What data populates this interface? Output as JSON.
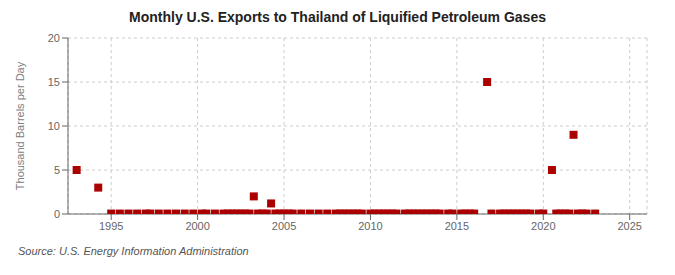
{
  "chart_data": {
    "type": "scatter",
    "title": "Monthly U.S. Exports to Thailand of Liquified Petroleum Gases",
    "y_label": "Thousand Barrels per Day",
    "source": "Source: U.S. Energy Information Administration",
    "color": "#aa0000",
    "marker": "square",
    "grid": true,
    "xlim": [
      1992.5,
      2026
    ],
    "ylim": [
      0,
      20
    ],
    "xticks": [
      1995,
      2000,
      2005,
      2010,
      2015,
      2020,
      2025
    ],
    "yticks": [
      0,
      5,
      10,
      15,
      20
    ],
    "x": [
      1993.0,
      1994.25,
      1995.0,
      1995.5,
      1996.0,
      1996.5,
      1997.0,
      1997.25,
      1997.75,
      1998.25,
      1998.75,
      1999.25,
      1999.75,
      2000.25,
      2000.5,
      2001.0,
      2001.5,
      2001.75,
      2002.0,
      2002.25,
      2002.5,
      2002.75,
      2003.0,
      2003.25,
      2003.5,
      2003.75,
      2004.0,
      2004.25,
      2004.5,
      2004.75,
      2005.0,
      2005.25,
      2005.5,
      2006.0,
      2006.5,
      2007.0,
      2007.5,
      2008.0,
      2008.25,
      2008.5,
      2008.75,
      2009.0,
      2009.25,
      2009.5,
      2010.0,
      2010.25,
      2010.5,
      2010.75,
      2011.0,
      2011.25,
      2011.5,
      2012.0,
      2012.25,
      2012.5,
      2012.75,
      2013.0,
      2013.25,
      2013.5,
      2013.75,
      2014.0,
      2014.5,
      2014.75,
      2015.25,
      2015.5,
      2015.75,
      2016.0,
      2016.75,
      2017.0,
      2017.5,
      2017.75,
      2018.0,
      2018.25,
      2018.5,
      2018.75,
      2019.0,
      2019.25,
      2019.75,
      2020.0,
      2020.5,
      2020.75,
      2021.0,
      2021.25,
      2021.5,
      2021.75,
      2022.0,
      2022.25,
      2022.5,
      2023.0
    ],
    "values": [
      5.0,
      3.0,
      0.05,
      0.05,
      0.05,
      0.05,
      0.05,
      0.05,
      0.05,
      0.05,
      0.05,
      0.05,
      0.05,
      0.05,
      0.05,
      0.05,
      0.05,
      0.05,
      0.05,
      0.05,
      0.05,
      0.05,
      0.05,
      2.0,
      0.05,
      0.05,
      0.05,
      1.2,
      0.05,
      0.05,
      0.05,
      0.05,
      0.05,
      0.05,
      0.05,
      0.05,
      0.05,
      0.05,
      0.05,
      0.05,
      0.05,
      0.05,
      0.05,
      0.05,
      0.05,
      0.05,
      0.05,
      0.05,
      0.05,
      0.05,
      0.05,
      0.05,
      0.05,
      0.05,
      0.05,
      0.05,
      0.05,
      0.05,
      0.05,
      0.05,
      0.05,
      0.05,
      0.05,
      0.05,
      0.05,
      0.05,
      15.0,
      0.05,
      0.05,
      0.05,
      0.05,
      0.05,
      0.05,
      0.05,
      0.05,
      0.05,
      0.05,
      0.05,
      5.0,
      0.05,
      0.05,
      0.05,
      0.05,
      9.0,
      0.05,
      0.05,
      0.05,
      0.05
    ]
  }
}
